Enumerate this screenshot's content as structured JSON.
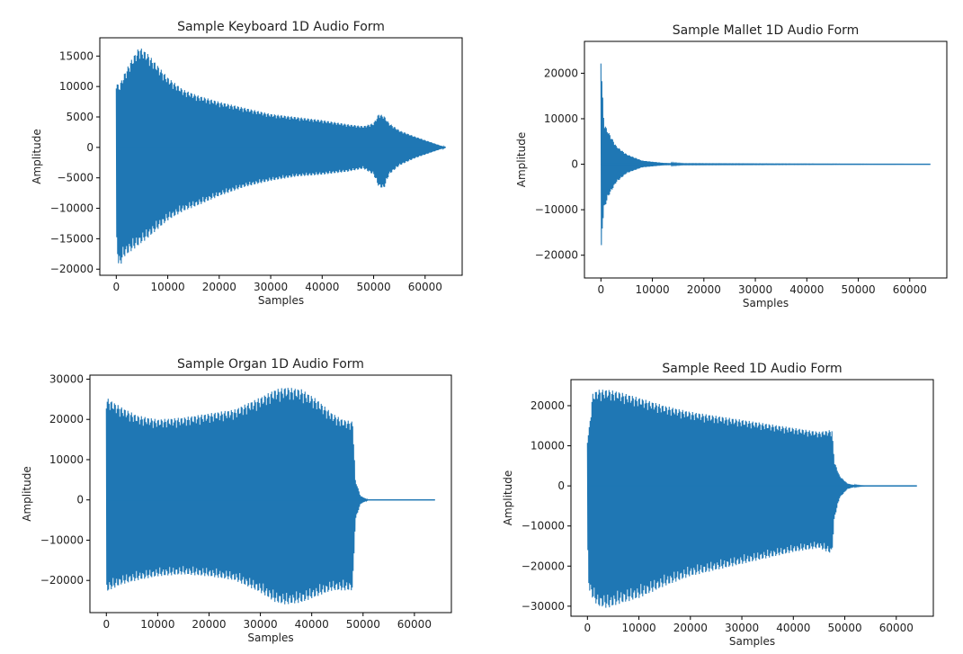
{
  "figure": {
    "line_color": "#1f77b4",
    "background": "#ffffff"
  },
  "chart_data": [
    {
      "type": "line",
      "title": "Sample Keyboard 1D Audio Form",
      "xlabel": "Samples",
      "ylabel": "Amplitude",
      "xlim": [
        -3200,
        67200
      ],
      "ylim": [
        -21000,
        18000
      ],
      "xticks": [
        0,
        10000,
        20000,
        30000,
        40000,
        50000,
        60000
      ],
      "xtick_labels": [
        "0",
        "10000",
        "20000",
        "30000",
        "40000",
        "50000",
        "60000"
      ],
      "yticks": [
        -20000,
        -15000,
        -10000,
        -5000,
        0,
        5000,
        10000,
        15000
      ],
      "ytick_labels": [
        "−20000",
        "−15000",
        "−10000",
        "−5000",
        "0",
        "5000",
        "10000",
        "15000"
      ],
      "envelope": {
        "x": [
          0,
          500,
          1500,
          3000,
          4500,
          6000,
          8000,
          10000,
          13000,
          16000,
          20000,
          25000,
          30000,
          35000,
          40000,
          45000,
          48000,
          50000,
          51000,
          52000,
          53000,
          55000,
          58000,
          61000,
          63000,
          64000
        ],
        "upper": [
          11000,
          10000,
          12000,
          14500,
          16500,
          15500,
          13500,
          11500,
          9500,
          8500,
          7500,
          6500,
          5500,
          5000,
          4500,
          3800,
          3500,
          4000,
          5500,
          5200,
          4000,
          2800,
          1800,
          900,
          300,
          0
        ],
        "lower": [
          -15000,
          -20000,
          -18000,
          -17000,
          -16000,
          -15000,
          -13500,
          -12000,
          -10500,
          -9500,
          -8000,
          -6500,
          -5500,
          -4800,
          -4500,
          -4000,
          -3500,
          -4500,
          -6500,
          -6800,
          -4500,
          -3000,
          -1800,
          -900,
          -300,
          0
        ]
      }
    },
    {
      "type": "line",
      "title": "Sample Mallet 1D Audio Form",
      "xlabel": "Samples",
      "ylabel": "Amplitude",
      "xlim": [
        -3200,
        67200
      ],
      "ylim": [
        -25000,
        27000
      ],
      "xticks": [
        0,
        10000,
        20000,
        30000,
        40000,
        50000,
        60000
      ],
      "xtick_labels": [
        "0",
        "10000",
        "20000",
        "30000",
        "40000",
        "50000",
        "60000"
      ],
      "yticks": [
        -20000,
        -10000,
        0,
        10000,
        20000
      ],
      "ytick_labels": [
        "−20000",
        "−10000",
        "0",
        "10000",
        "20000"
      ],
      "envelope": {
        "x": [
          0,
          200,
          600,
          1500,
          3000,
          5000,
          8000,
          12000,
          16000,
          64000
        ],
        "upper": [
          25000,
          18000,
          9000,
          7000,
          4000,
          2200,
          800,
          300,
          100,
          0
        ],
        "lower": [
          -22500,
          -15000,
          -10000,
          -7000,
          -4000,
          -2000,
          -700,
          -250,
          -100,
          0
        ]
      }
    },
    {
      "type": "line",
      "title": "Sample Organ 1D Audio Form",
      "xlabel": "Samples",
      "ylabel": "Amplitude",
      "xlim": [
        -3200,
        67200
      ],
      "ylim": [
        -28000,
        31000
      ],
      "xticks": [
        0,
        10000,
        20000,
        30000,
        40000,
        50000,
        60000
      ],
      "xtick_labels": [
        "0",
        "10000",
        "20000",
        "30000",
        "40000",
        "50000",
        "60000"
      ],
      "yticks": [
        -20000,
        -10000,
        0,
        10000,
        20000,
        30000
      ],
      "ytick_labels": [
        "−20000",
        "−10000",
        "0",
        "10000",
        "20000",
        "30000"
      ],
      "envelope": {
        "x": [
          0,
          500,
          3000,
          6000,
          10000,
          15000,
          20000,
          25000,
          30000,
          33000,
          35000,
          38000,
          41000,
          44000,
          46000,
          47800,
          48000,
          48500,
          49500,
          51000,
          64000
        ],
        "upper": [
          25500,
          25000,
          23000,
          21000,
          20000,
          20500,
          21500,
          22500,
          25500,
          27500,
          28000,
          27500,
          25000,
          21500,
          20000,
          19500,
          19500,
          5000,
          1000,
          0,
          0
        ],
        "lower": [
          -23000,
          -22500,
          -21000,
          -20000,
          -19000,
          -18500,
          -19000,
          -20000,
          -23000,
          -25500,
          -26000,
          -25500,
          -24000,
          -22500,
          -22500,
          -22500,
          -22000,
          -5000,
          -1000,
          0,
          0
        ]
      }
    },
    {
      "type": "line",
      "title": "Sample Reed 1D Audio Form",
      "xlabel": "Samples",
      "ylabel": "Amplitude",
      "xlim": [
        -3200,
        67200
      ],
      "ylim": [
        -32500,
        26500
      ],
      "xticks": [
        0,
        10000,
        20000,
        30000,
        40000,
        50000,
        60000
      ],
      "xtick_labels": [
        "0",
        "10000",
        "20000",
        "30000",
        "40000",
        "50000",
        "60000"
      ],
      "yticks": [
        -30000,
        -20000,
        -10000,
        0,
        10000,
        20000
      ],
      "ytick_labels": [
        "−30000",
        "−20000",
        "−10000",
        "0",
        "10000",
        "20000"
      ],
      "envelope": {
        "x": [
          0,
          300,
          1000,
          2000,
          4000,
          6000,
          10000,
          15000,
          20000,
          25000,
          30000,
          35000,
          40000,
          45000,
          47500,
          48000,
          49000,
          50500,
          52000,
          54000,
          64000
        ],
        "upper": [
          12000,
          14000,
          23000,
          24000,
          24000,
          23500,
          22000,
          20000,
          18500,
          17500,
          16500,
          15500,
          14500,
          13500,
          14000,
          6000,
          2500,
          600,
          150,
          0,
          0
        ],
        "lower": [
          -14000,
          -26000,
          -28000,
          -30000,
          -30500,
          -29500,
          -28000,
          -25000,
          -22500,
          -21000,
          -19500,
          -18000,
          -16500,
          -15500,
          -17000,
          -8000,
          -3000,
          -800,
          -200,
          0,
          0
        ]
      }
    }
  ]
}
